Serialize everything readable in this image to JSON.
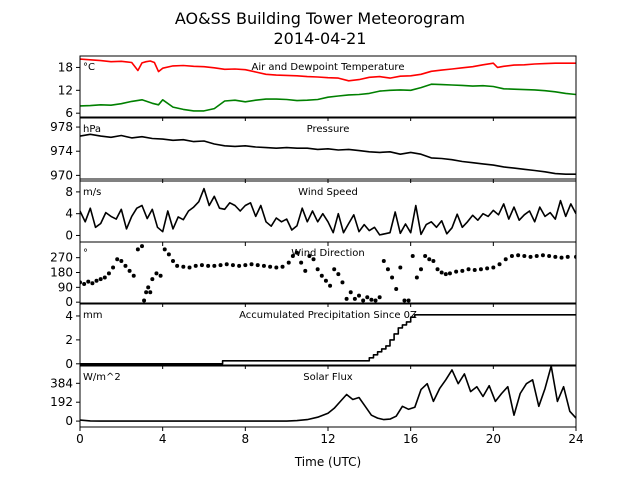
{
  "chart_data": {
    "type": "line",
    "title": "AO&SS Building Tower Meteorogram",
    "subtitle": "2014-04-21",
    "xlabel": "Time (UTC)",
    "xlim": [
      0,
      24
    ],
    "xticks": [
      0,
      4,
      8,
      12,
      16,
      20,
      24
    ],
    "grid": false,
    "panels": [
      {
        "name": "temperature",
        "title": "Air and Dewpoint Temperature",
        "unit": "°C",
        "ylim": [
          5,
          21
        ],
        "yticks": [
          6,
          12,
          18
        ],
        "series": [
          {
            "color": "#ff0000",
            "x": [
              0,
              0.5,
              1,
              1.5,
              2,
              2.5,
              2.8,
              3,
              3.2,
              3.4,
              3.6,
              3.8,
              4,
              4.5,
              5,
              5.5,
              6,
              6.5,
              7,
              7.5,
              8,
              8.5,
              9,
              9.5,
              10,
              10.5,
              11,
              11.5,
              12,
              12.5,
              13,
              13.5,
              14,
              14.5,
              15,
              15.5,
              16,
              16.5,
              17,
              17.5,
              18,
              18.5,
              19,
              19.5,
              20,
              20.2,
              20.5,
              21,
              21.5,
              22,
              22.5,
              23,
              23.5,
              24
            ],
            "y": [
              20.2,
              20,
              19.8,
              19.5,
              19.6,
              19.3,
              17.2,
              19.2,
              19.5,
              19.7,
              19.3,
              16.9,
              17.8,
              18.4,
              18.5,
              18.3,
              18.2,
              17.9,
              17.5,
              17.6,
              17.4,
              16.8,
              16.2,
              16,
              15.9,
              15.8,
              15.6,
              15.5,
              15.3,
              15.2,
              14.5,
              14.8,
              15.4,
              15.6,
              15.2,
              15.7,
              15.8,
              16.2,
              17,
              17.3,
              17.6,
              17.9,
              18.2,
              18.7,
              19.1,
              18,
              18.3,
              18.6,
              18.7,
              18.9,
              19,
              19.1,
              19.1,
              19.1
            ]
          },
          {
            "color": "#008000",
            "x": [
              0,
              0.5,
              1,
              1.5,
              2,
              2.5,
              3,
              3.5,
              3.8,
              4,
              4.5,
              5,
              5.5,
              6,
              6.5,
              7,
              7.5,
              8,
              8.5,
              9,
              9.5,
              10,
              10.5,
              11,
              11.5,
              12,
              12.5,
              13,
              13.5,
              14,
              14.5,
              15,
              15.5,
              16,
              16.5,
              17,
              17.5,
              18,
              18.5,
              19,
              19.5,
              20,
              20.5,
              21,
              21.5,
              22,
              22.5,
              23,
              23.5,
              24
            ],
            "y": [
              7.9,
              8,
              8.2,
              8.1,
              8.5,
              9.1,
              9.5,
              8.6,
              8.2,
              9.5,
              7.6,
              7,
              6.6,
              6.6,
              7.2,
              9.2,
              9.4,
              9,
              9.4,
              9.7,
              9.7,
              9.6,
              9.3,
              9.4,
              9.6,
              10.2,
              10.5,
              10.8,
              10.9,
              11.2,
              11.8,
              12,
              12.1,
              12,
              12.7,
              13.6,
              13.5,
              13.4,
              13.3,
              13.1,
              13.2,
              13,
              12.4,
              12.3,
              12.2,
              12.1,
              11.9,
              11.6,
              11.2,
              10.9
            ]
          }
        ]
      },
      {
        "name": "pressure",
        "title": "Pressure",
        "unit": "hPa",
        "ylim": [
          969.4,
          979.5
        ],
        "yticks": [
          970,
          974,
          978
        ],
        "series": [
          {
            "color": "#000000",
            "x": [
              0,
              0.5,
              1,
              1.5,
              2,
              2.5,
              3,
              3.5,
              4,
              4.5,
              5,
              5.5,
              6,
              6.5,
              7,
              7.5,
              8,
              8.5,
              9,
              9.5,
              10,
              10.5,
              11,
              11.5,
              12,
              12.5,
              13,
              13.5,
              14,
              14.5,
              15,
              15.5,
              16,
              16.5,
              17,
              17.5,
              18,
              18.5,
              19,
              19.5,
              20,
              20.5,
              21,
              21.5,
              22,
              22.5,
              23,
              23.5,
              24
            ],
            "y": [
              976.5,
              976.8,
              976.5,
              976.3,
              976.6,
              976.2,
              976.4,
              976.1,
              976,
              975.8,
              975.9,
              975.6,
              975.7,
              975.2,
              974.9,
              974.8,
              974.9,
              974.7,
              974.6,
              974.5,
              974.6,
              974.5,
              974.5,
              974.3,
              974.4,
              974.2,
              974.3,
              974.1,
              973.9,
              973.8,
              973.9,
              973.5,
              973.8,
              973.5,
              972.9,
              972.8,
              972.6,
              972.3,
              972.1,
              971.9,
              971.7,
              971.4,
              971.2,
              971,
              970.8,
              970.6,
              970.3,
              970.2,
              970.2
            ]
          }
        ]
      },
      {
        "name": "wind_speed",
        "title": "Wind Speed",
        "unit": "m/s",
        "ylim": [
          -1.2,
          10
        ],
        "yticks": [
          0,
          4,
          8
        ],
        "series": [
          {
            "color": "#000000",
            "x": [
              0,
              0.25,
              0.5,
              0.75,
              1,
              1.25,
              1.5,
              1.75,
              2,
              2.25,
              2.5,
              2.75,
              3,
              3.25,
              3.5,
              3.75,
              4,
              4.25,
              4.5,
              4.75,
              5,
              5.25,
              5.5,
              5.75,
              6,
              6.25,
              6.5,
              6.75,
              7,
              7.25,
              7.5,
              7.75,
              8,
              8.25,
              8.5,
              8.75,
              9,
              9.25,
              9.5,
              9.75,
              10,
              10.25,
              10.5,
              10.75,
              11,
              11.25,
              11.5,
              11.75,
              12,
              12.25,
              12.5,
              12.75,
              13,
              13.25,
              13.5,
              13.75,
              14,
              14.25,
              14.5,
              14.75,
              15,
              15.25,
              15.5,
              15.75,
              16,
              16.25,
              16.5,
              16.75,
              17,
              17.25,
              17.5,
              17.75,
              18,
              18.25,
              18.5,
              18.75,
              19,
              19.25,
              19.5,
              19.75,
              20,
              20.25,
              20.5,
              20.75,
              21,
              21.25,
              21.5,
              21.75,
              22,
              22.25,
              22.5,
              22.75,
              23,
              23.25,
              23.5,
              23.75,
              24
            ],
            "y": [
              4.5,
              2.5,
              5,
              1.5,
              2.2,
              4.2,
              3.5,
              3,
              4.8,
              1.2,
              3.5,
              5,
              5.5,
              3.1,
              4.8,
              1.5,
              0.7,
              4.5,
              1.2,
              3.4,
              2.9,
              4.5,
              5.2,
              6.2,
              8.6,
              5.5,
              7.2,
              5,
              4.8,
              6,
              5.5,
              4.5,
              5.5,
              6,
              3.5,
              5.5,
              2.5,
              1.7,
              3.2,
              2.5,
              3,
              1,
              1.8,
              5,
              2.5,
              4.5,
              2.5,
              4,
              2.5,
              0.5,
              4,
              0.5,
              2.2,
              3.8,
              0.7,
              2,
              0.9,
              1.5,
              0.1,
              0.3,
              0.5,
              4.3,
              0.4,
              2.1,
              0.5,
              5.5,
              0.2,
              2,
              2.5,
              1.5,
              2.7,
              0.3,
              1.4,
              3.9,
              1.5,
              2.5,
              3.7,
              2.8,
              4,
              3.5,
              4.6,
              3.8,
              5.8,
              3,
              5.2,
              2.8,
              3.8,
              4.5,
              2.5,
              5.2,
              3.5,
              4.2,
              3,
              6.4,
              3.5,
              5.8,
              4
            ]
          }
        ]
      },
      {
        "name": "wind_direction",
        "title": "Wind Direction",
        "unit": "°",
        "ylim": [
          -5,
          365
        ],
        "yticks": [
          0,
          90,
          180,
          270
        ],
        "series": [
          {
            "color": "#000000",
            "marker": "dot",
            "x": [
              0,
              0.2,
              0.4,
              0.6,
              0.8,
              1,
              1.2,
              1.4,
              1.6,
              1.8,
              2,
              2.2,
              2.4,
              2.6,
              2.8,
              3.0,
              3.1,
              3.2,
              3.3,
              3.4,
              3.5,
              3.7,
              3.9,
              4.1,
              4.3,
              4.5,
              4.7,
              5,
              5.3,
              5.6,
              5.9,
              6.2,
              6.5,
              6.8,
              7.1,
              7.4,
              7.7,
              8,
              8.3,
              8.6,
              8.9,
              9.2,
              9.5,
              9.8,
              10.1,
              10.3,
              10.5,
              10.7,
              10.9,
              11.1,
              11.3,
              11.5,
              11.7,
              11.9,
              12.1,
              12.3,
              12.5,
              12.7,
              12.9,
              13.1,
              13.3,
              13.5,
              13.7,
              13.9,
              14.1,
              14.3,
              14.5,
              14.7,
              14.9,
              15.1,
              15.3,
              15.5,
              15.7,
              15.9,
              16.1,
              16.3,
              16.5,
              16.7,
              16.9,
              17.1,
              17.3,
              17.5,
              17.7,
              17.9,
              18.2,
              18.5,
              18.8,
              19.1,
              19.4,
              19.7,
              20,
              20.3,
              20.6,
              20.9,
              21.2,
              21.5,
              21.8,
              22.1,
              22.4,
              22.7,
              23,
              23.3,
              23.6,
              24
            ],
            "y": [
              120,
              110,
              125,
              115,
              130,
              140,
              150,
              175,
              210,
              260,
              250,
              220,
              190,
              160,
              320,
              340,
              10,
              60,
              90,
              60,
              140,
              175,
              160,
              320,
              290,
              250,
              220,
              215,
              210,
              220,
              225,
              220,
              220,
              225,
              230,
              225,
              220,
              225,
              230,
              225,
              220,
              215,
              210,
              215,
              240,
              280,
              300,
              240,
              190,
              280,
              260,
              200,
              160,
              130,
              100,
              200,
              170,
              120,
              20,
              60,
              20,
              40,
              10,
              30,
              15,
              10,
              30,
              250,
              200,
              150,
              80,
              210,
              10,
              10,
              280,
              150,
              200,
              280,
              260,
              250,
              200,
              180,
              170,
              175,
              185,
              190,
              200,
              195,
              200,
              205,
              210,
              230,
              260,
              280,
              285,
              280,
              275,
              280,
              285,
              280,
              275,
              270,
              275,
              275
            ]
          }
        ]
      },
      {
        "name": "precipitation",
        "title": "Accumulated Precipitation Since 0Z",
        "unit": "mm",
        "ylim": [
          -0.1,
          5.0
        ],
        "yticks": [
          0,
          2,
          4
        ],
        "series": [
          {
            "color": "#000000",
            "x": [
              0,
              6.9,
              6.9,
              14.0,
              14.0,
              14.2,
              14.2,
              14.4,
              14.4,
              14.6,
              14.6,
              14.8,
              14.8,
              15.0,
              15.0,
              15.2,
              15.2,
              15.4,
              15.4,
              15.6,
              15.6,
              15.8,
              15.8,
              16.0,
              16.0,
              16.2,
              16.2,
              24
            ],
            "y": [
              0,
              0,
              0.25,
              0.25,
              0.5,
              0.5,
              0.75,
              0.75,
              1.0,
              1.0,
              1.25,
              1.25,
              1.5,
              1.5,
              2.0,
              2.0,
              2.5,
              2.5,
              3.0,
              3.0,
              3.25,
              3.25,
              3.5,
              3.5,
              3.9,
              3.9,
              4.1,
              4.1
            ]
          }
        ]
      },
      {
        "name": "solar",
        "title": "Solar Flux",
        "unit": "W/m^2",
        "ylim": [
          -60,
          560
        ],
        "yticks": [
          0,
          192,
          384
        ],
        "series": [
          {
            "color": "#000000",
            "x": [
              0,
              0.5,
              1,
              2,
              3,
              4,
              5,
              6,
              7,
              8,
              9,
              10,
              10.5,
              11,
              11.5,
              12,
              12.3,
              12.6,
              12.9,
              13.2,
              13.5,
              13.8,
              14.1,
              14.4,
              14.7,
              15,
              15.3,
              15.6,
              15.9,
              16.2,
              16.5,
              16.8,
              17.1,
              17.4,
              17.7,
              18,
              18.3,
              18.6,
              18.9,
              19.2,
              19.5,
              19.8,
              20.1,
              20.4,
              20.7,
              21,
              21.3,
              21.6,
              21.9,
              22.2,
              22.5,
              22.8,
              23.1,
              23.4,
              23.7,
              24
            ],
            "y": [
              10,
              2,
              0,
              0,
              0,
              0,
              0,
              0,
              0,
              0,
              0,
              0,
              5,
              15,
              40,
              80,
              130,
              200,
              270,
              220,
              240,
              150,
              60,
              30,
              15,
              20,
              50,
              150,
              120,
              140,
              320,
              380,
              200,
              330,
              420,
              520,
              380,
              480,
              300,
              350,
              250,
              360,
              200,
              280,
              350,
              60,
              280,
              380,
              420,
              150,
              330,
              560,
              200,
              350,
              100,
              30
            ]
          }
        ]
      }
    ]
  }
}
